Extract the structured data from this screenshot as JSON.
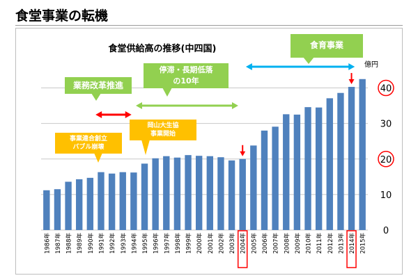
{
  "page": {
    "title": "食堂事業の転機"
  },
  "callouts": {
    "food_education": "食育事業",
    "reform": "業務改革推進",
    "stagnation_line1": "停滞・長期低落",
    "stagnation_line2": "の10年",
    "merger_line1": "事業連合創立",
    "merger_line2": "バブル崩壊",
    "okayama_line1": "岡山大生協",
    "okayama_line2": "事業開始"
  },
  "colors": {
    "bar": "#4f81bd",
    "green_callout": "#92d050",
    "yellow_callout": "#ffc000",
    "cyan_arrow": "#00b0f0",
    "red_arrow": "#ff0000",
    "highlight": "#ff0000"
  },
  "chart_data": {
    "type": "bar",
    "title": "食堂供給高の推移(中四国)",
    "ylabel": "億円",
    "xlabel": "",
    "ylim": [
      0,
      45
    ],
    "yticks": [
      0,
      10,
      20,
      30,
      40
    ],
    "highlighted_yticks": [
      20,
      40
    ],
    "highlighted_categories": [
      "2004年",
      "2014年"
    ],
    "grid": true,
    "categories": [
      "1986年",
      "1987年",
      "1988年",
      "1989年",
      "1990年",
      "1991年",
      "1992年",
      "1993年",
      "1994年",
      "1995年",
      "1996年",
      "1997年",
      "1998年",
      "1999年",
      "2000年",
      "2001年",
      "2002年",
      "2003年",
      "2004年",
      "2005年",
      "2006年",
      "2007年",
      "2008年",
      "2009年",
      "2010年",
      "2011年",
      "2012年",
      "2013年",
      "2014年",
      "2015年"
    ],
    "values": [
      11.2,
      11.5,
      13.6,
      14.3,
      14.7,
      16.3,
      15.9,
      16.3,
      16.2,
      18.7,
      20.2,
      20.8,
      20.4,
      21.1,
      20.9,
      20.8,
      20.5,
      19.6,
      20.0,
      23.8,
      28.0,
      29.1,
      32.6,
      32.5,
      34.6,
      34.5,
      37.1,
      38.6,
      40.3,
      42.5
    ]
  }
}
